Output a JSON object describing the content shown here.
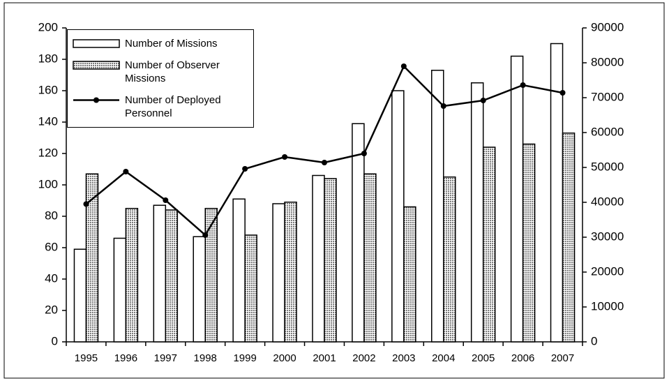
{
  "chart_data": {
    "type": "bar-line",
    "categories": [
      "1995",
      "1996",
      "1997",
      "1998",
      "1999",
      "2000",
      "2001",
      "2002",
      "2003",
      "2004",
      "2005",
      "2006",
      "2007"
    ],
    "series": [
      {
        "name": "Number of Missions",
        "color": "#ffffff",
        "type": "bar",
        "values": [
          59,
          66,
          87,
          67,
          91,
          88,
          106,
          139,
          160,
          173,
          165,
          182,
          190
        ]
      },
      {
        "name": "Number of Observer Missions",
        "color": "#7a7a7a",
        "type": "bar",
        "pattern": "dotted",
        "values": [
          107,
          85,
          84,
          85,
          68,
          89,
          104,
          107,
          86,
          105,
          124,
          126,
          133
        ]
      },
      {
        "name": "Number of Deployed Personnel",
        "color": "#000000",
        "type": "line",
        "axis": "y2",
        "values": [
          39500,
          48800,
          40600,
          30600,
          49600,
          53000,
          51400,
          54000,
          79000,
          67600,
          69200,
          73600,
          71400
        ]
      }
    ],
    "ylim": [
      0,
      200
    ],
    "yticks": [
      0,
      20,
      40,
      60,
      80,
      100,
      120,
      140,
      160,
      180,
      200
    ],
    "y2lim": [
      0,
      90000
    ],
    "y2ticks": [
      0,
      10000,
      20000,
      30000,
      40000,
      50000,
      60000,
      70000,
      80000,
      90000
    ],
    "grid": false,
    "legend": "top-left"
  }
}
